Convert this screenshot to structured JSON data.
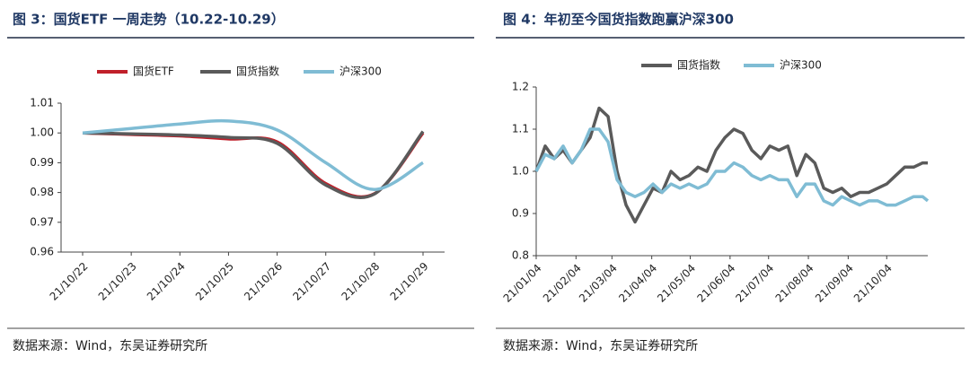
{
  "chart_data": [
    {
      "type": "line",
      "title": "图 3：国货ETF 一周走势（10.22-10.29）",
      "source": "数据来源：Wind，东吴证券研究所",
      "categories": [
        "21/10/22",
        "21/10/23",
        "21/10/24",
        "21/10/25",
        "21/10/26",
        "21/10/27",
        "21/10/28",
        "21/10/29"
      ],
      "series": [
        {
          "name": "国货ETF",
          "color": "#c0202a",
          "values": [
            1.0,
            0.9995,
            0.999,
            0.998,
            0.997,
            0.983,
            0.9796,
            1.0
          ]
        },
        {
          "name": "国货指数",
          "color": "#5a5a5a",
          "values": [
            1.0,
            0.9997,
            0.9993,
            0.9985,
            0.9965,
            0.9825,
            0.9795,
            1.0005
          ]
        },
        {
          "name": "沪深300",
          "color": "#7fbcd4",
          "values": [
            1.0,
            1.0015,
            1.003,
            1.004,
            1.001,
            0.99,
            0.981,
            0.99
          ]
        }
      ],
      "ylim": [
        0.96,
        1.01
      ],
      "yticks": [
        0.96,
        0.97,
        0.98,
        0.99,
        {
          "value": 1,
          "label": "1.00"
        },
        1.01
      ],
      "legend": "top",
      "smooth": true
    },
    {
      "type": "line",
      "title": "图 4：年初至今国货指数跑赢沪深300",
      "source": "数据来源：Wind，东吴证券研究所",
      "x": [
        "21/01/04",
        "21/01/11",
        "21/01/18",
        "21/01/25",
        "21/02/01",
        "21/02/08",
        "21/02/15",
        "21/02/22",
        "21/03/01",
        "21/03/08",
        "21/03/15",
        "21/03/22",
        "21/03/29",
        "21/04/05",
        "21/04/12",
        "21/04/19",
        "21/04/26",
        "21/05/03",
        "21/05/10",
        "21/05/17",
        "21/05/24",
        "21/05/31",
        "21/06/07",
        "21/06/14",
        "21/06/21",
        "21/06/28",
        "21/07/05",
        "21/07/12",
        "21/07/19",
        "21/07/26",
        "21/08/02",
        "21/08/09",
        "21/08/16",
        "21/08/23",
        "21/08/30",
        "21/09/06",
        "21/09/13",
        "21/09/20",
        "21/09/27",
        "21/10/04",
        "21/10/11",
        "21/10/18",
        "21/10/25",
        "21/11/01",
        "21/11/05"
      ],
      "series": [
        {
          "name": "国货指数",
          "color": "#5a5a5a",
          "values": [
            1.0,
            1.06,
            1.03,
            1.05,
            1.02,
            1.05,
            1.08,
            1.15,
            1.13,
            1.0,
            0.92,
            0.88,
            0.92,
            0.96,
            0.95,
            1.0,
            0.98,
            0.99,
            1.01,
            1.0,
            1.05,
            1.08,
            1.1,
            1.09,
            1.05,
            1.03,
            1.06,
            1.05,
            1.06,
            0.99,
            1.04,
            1.02,
            0.96,
            0.95,
            0.96,
            0.94,
            0.95,
            0.95,
            0.96,
            0.97,
            0.99,
            1.01,
            1.01,
            1.02,
            1.02
          ]
        },
        {
          "name": "沪深300",
          "color": "#7fbcd4",
          "values": [
            1.0,
            1.04,
            1.03,
            1.06,
            1.02,
            1.05,
            1.1,
            1.1,
            1.07,
            0.98,
            0.95,
            0.94,
            0.95,
            0.97,
            0.95,
            0.97,
            0.96,
            0.97,
            0.96,
            0.97,
            1.0,
            1.0,
            1.02,
            1.01,
            0.99,
            0.98,
            0.99,
            0.98,
            0.98,
            0.94,
            0.97,
            0.97,
            0.93,
            0.92,
            0.94,
            0.93,
            0.92,
            0.93,
            0.93,
            0.92,
            0.92,
            0.93,
            0.94,
            0.94,
            0.93
          ]
        }
      ],
      "xlim": [
        "21/01/04",
        "21/11/05"
      ],
      "xticks": [
        "21/01/04",
        "21/02/04",
        "21/03/04",
        "21/04/04",
        "21/05/04",
        "21/06/04",
        "21/07/04",
        "21/08/04",
        "21/09/04",
        "21/10/04"
      ],
      "ylim": [
        0.8,
        1.2
      ],
      "yticks": [
        0.8,
        0.9,
        {
          "value": 1,
          "label": "1.0"
        },
        1.1,
        1.2
      ],
      "legend": "top",
      "smooth": false
    }
  ]
}
